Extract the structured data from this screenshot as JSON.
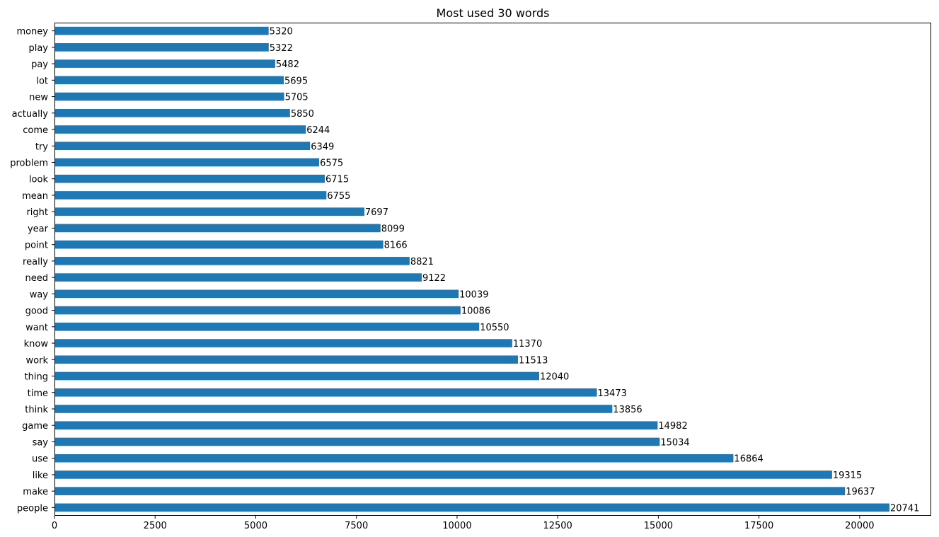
{
  "chart_data": {
    "type": "bar",
    "orientation": "horizontal",
    "title": "Most used 30 words",
    "xlabel": "",
    "ylabel": "",
    "bar_color": "#1f77b4",
    "xlim": [
      0,
      21778
    ],
    "x_ticks": [
      0,
      2500,
      5000,
      7500,
      10000,
      12500,
      15000,
      17500,
      20000
    ],
    "x_tick_labels": [
      "0",
      "2500",
      "5000",
      "7500",
      "10000",
      "12500",
      "15000",
      "17500",
      "20000"
    ],
    "grid": false,
    "legend": "none",
    "categories": [
      "money",
      "play",
      "pay",
      "lot",
      "new",
      "actually",
      "come",
      "try",
      "problem",
      "look",
      "mean",
      "right",
      "year",
      "point",
      "really",
      "need",
      "way",
      "good",
      "want",
      "know",
      "work",
      "thing",
      "time",
      "think",
      "game",
      "say",
      "use",
      "like",
      "make",
      "people"
    ],
    "values": [
      5320,
      5322,
      5482,
      5695,
      5705,
      5850,
      6244,
      6349,
      6575,
      6715,
      6755,
      7697,
      8099,
      8166,
      8821,
      9122,
      10039,
      10086,
      10550,
      11370,
      11513,
      12040,
      13473,
      13856,
      14982,
      15034,
      16864,
      19315,
      19637,
      20741
    ],
    "value_labels": [
      "5320",
      "5322",
      "5482",
      "5695",
      "5705",
      "5850",
      "6244",
      "6349",
      "6575",
      "6715",
      "6755",
      "7697",
      "8099",
      "8166",
      "8821",
      "9122",
      "10039",
      "10086",
      "10550",
      "11370",
      "11513",
      "12040",
      "13473",
      "13856",
      "14982",
      "15034",
      "16864",
      "19315",
      "19637",
      "20741"
    ]
  }
}
